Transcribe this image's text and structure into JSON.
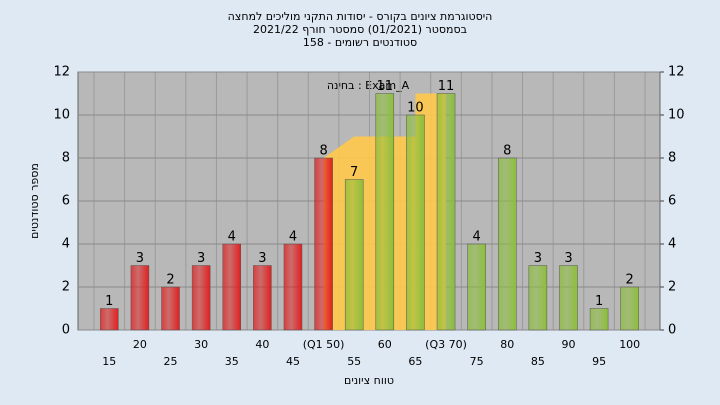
{
  "chart_data": {
    "type": "bar",
    "title": "היסטוגרמת ציונים בקורס - יסודות התקני מוליכים למחצה",
    "subtitle": "בסמסטר  (01/2021)  סמסטר חורף 2021/22",
    "subtitle2": "סטודנטים רשומים - 158",
    "annotation": "בחינה : Exam_A",
    "x_label": "טווח ציונים",
    "y_label": "מספר סטודנטים",
    "categories": [
      "15",
      "20",
      "25",
      "30",
      "35",
      "40",
      "45",
      "(Q1 50)",
      "55",
      "60",
      "65",
      "(Q3 70)",
      "75",
      "80",
      "85",
      "90",
      "95",
      "100"
    ],
    "values": [
      1,
      3,
      2,
      3,
      4,
      3,
      4,
      8,
      7,
      11,
      10,
      11,
      4,
      8,
      3,
      3,
      1,
      2
    ],
    "colors": [
      "#e02020",
      "#e02020",
      "#e02020",
      "#e02020",
      "#e02020",
      "#e02020",
      "#e02020",
      "#e02020",
      "#8cbf3a",
      "#8cbf3a",
      "#8cbf3a",
      "#8cbf3a",
      "#8cbf3a",
      "#8cbf3a",
      "#8cbf3a",
      "#8cbf3a",
      "#8cbf3a",
      "#8cbf3a"
    ],
    "ylim": [
      0,
      12
    ],
    "yticks": [
      0,
      2,
      4,
      6,
      8,
      10,
      12
    ],
    "y2lim": [
      0,
      12
    ],
    "y2ticks": [
      0,
      2,
      4,
      6,
      8,
      10,
      12
    ],
    "grid": true
  }
}
